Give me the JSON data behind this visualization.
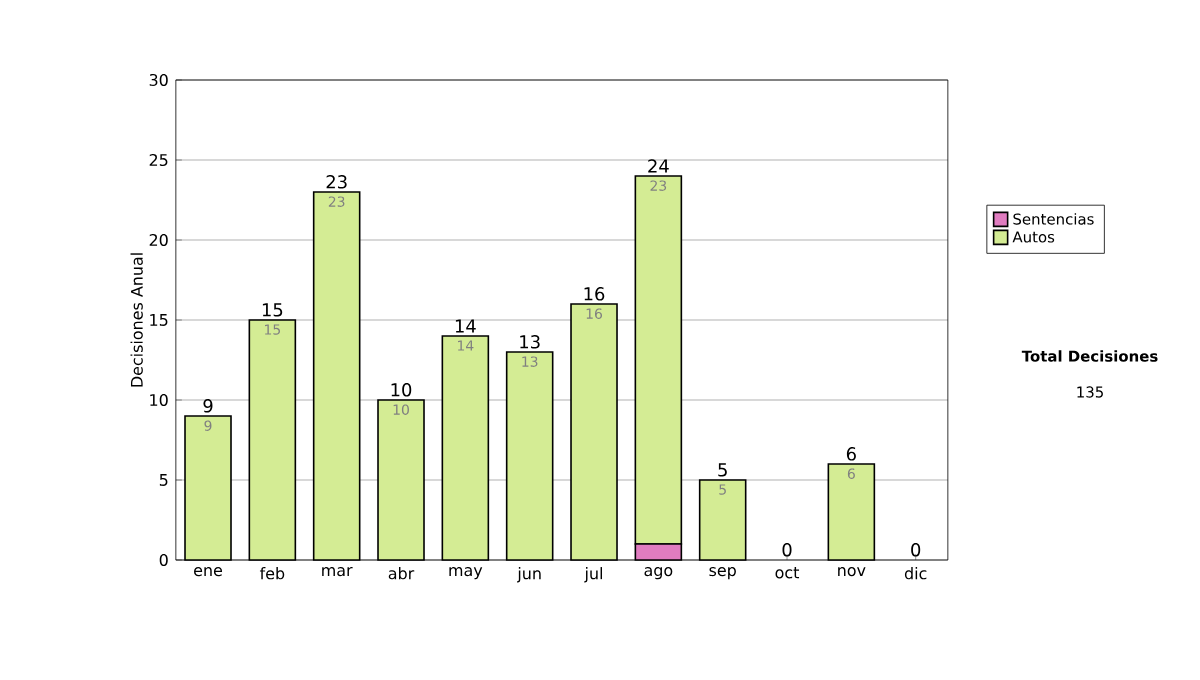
{
  "chart_data": {
    "type": "bar",
    "stacked": true,
    "ylabel": "Decisiones Anual",
    "categories": [
      "ene",
      "feb",
      "mar",
      "abr",
      "may",
      "jun",
      "jul",
      "ago",
      "sep",
      "oct",
      "nov",
      "dic"
    ],
    "series": [
      {
        "name": "Sentencias",
        "color": "#e07cc0",
        "values": [
          0,
          0,
          0,
          0,
          0,
          0,
          0,
          1,
          0,
          0,
          0,
          0
        ]
      },
      {
        "name": "Autos",
        "color": "#d4ec94",
        "values": [
          9,
          15,
          23,
          10,
          14,
          13,
          16,
          23,
          5,
          0,
          6,
          0
        ],
        "value_labels": [
          "9",
          "15",
          "23",
          "10",
          "14",
          "13",
          "16",
          "23",
          "5",
          null,
          "6",
          null
        ]
      }
    ],
    "totals": [
      "9",
      "15",
      "23",
      "10",
      "14",
      "13",
      "16",
      "24",
      "5",
      "0",
      "6",
      "0"
    ],
    "ylim": [
      0,
      30
    ],
    "yticks": [
      0,
      5,
      10,
      15,
      20,
      25,
      30
    ],
    "grid": "y",
    "legend": "right",
    "annotations": [
      "Total Decisiones",
      "135"
    ]
  }
}
